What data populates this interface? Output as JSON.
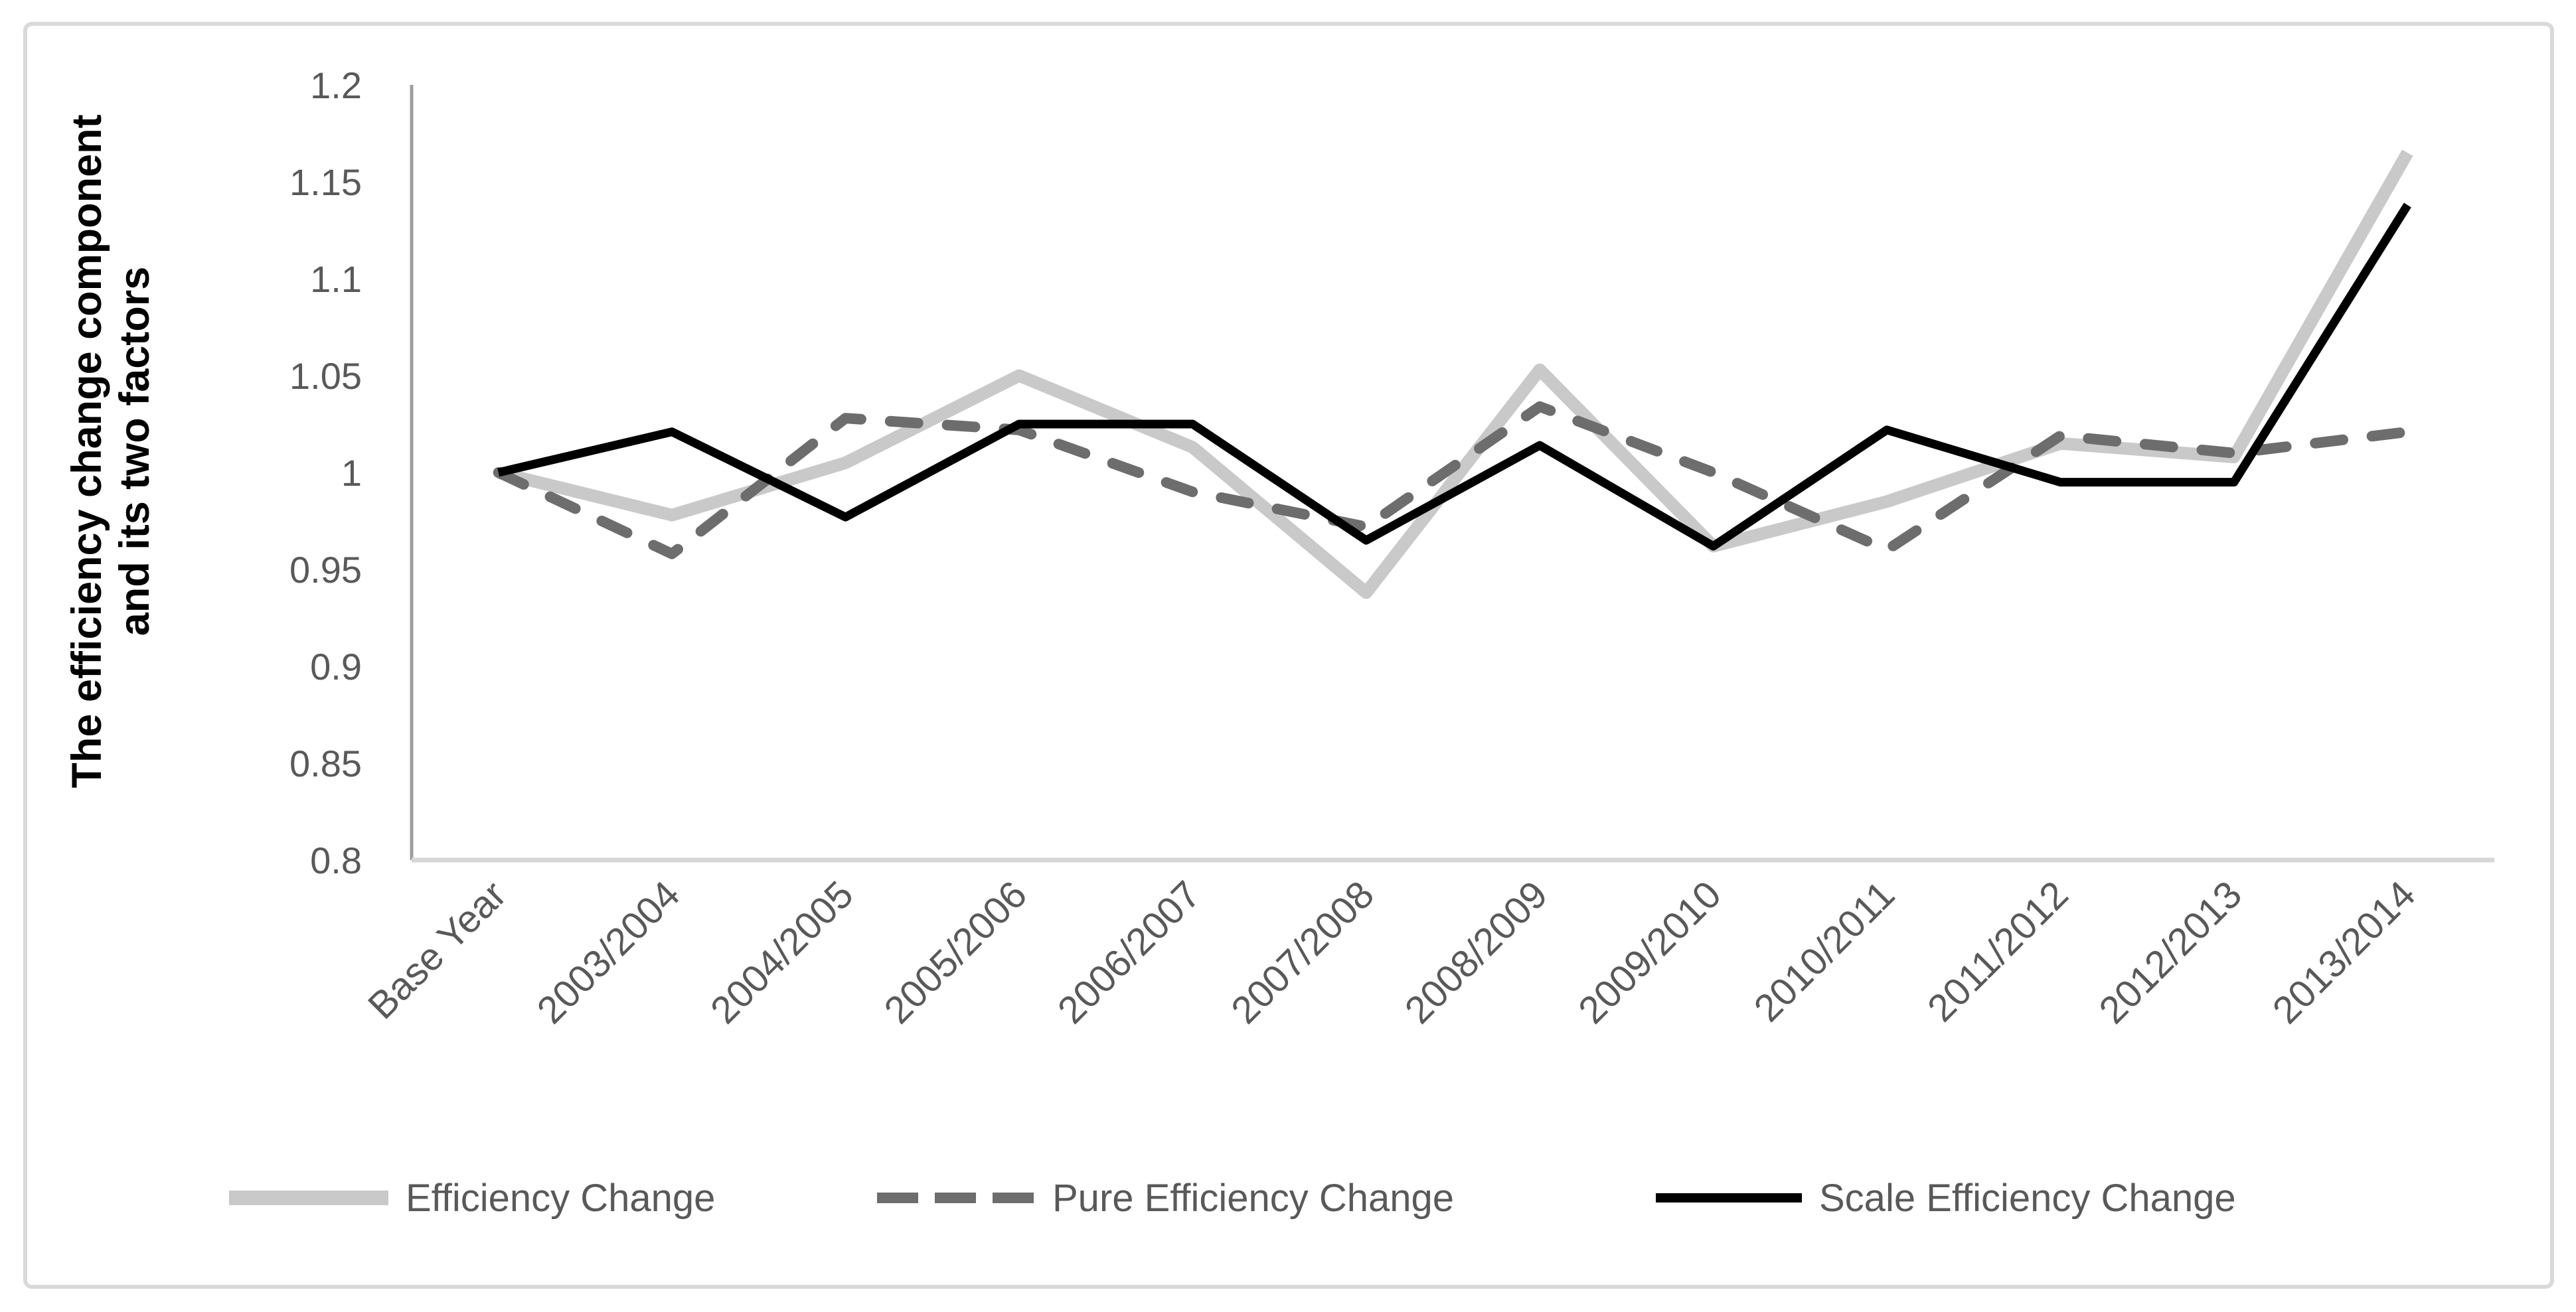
{
  "chart_data": {
    "type": "line",
    "title": "",
    "ylabel_line1": "The efficiency change component",
    "ylabel_line2": "and its two factors",
    "xlabel": "",
    "ylim": [
      0.8,
      1.2
    ],
    "grid": "off",
    "legend_position": "bottom",
    "axis_line_color": "#9e9e9e",
    "baseline_color": "#d6d6d6",
    "border_color": "#d9d9d9",
    "text_color": "#595959",
    "yticks": [
      {
        "label": "1.2",
        "value": 1.2
      },
      {
        "label": "1.15",
        "value": 1.15
      },
      {
        "label": "1.1",
        "value": 1.1
      },
      {
        "label": "1.05",
        "value": 1.05
      },
      {
        "label": "1",
        "value": 1.0
      },
      {
        "label": "0.95",
        "value": 0.95
      },
      {
        "label": "0.9",
        "value": 0.9
      },
      {
        "label": "0.85",
        "value": 0.85
      },
      {
        "label": "0.8",
        "value": 0.8
      }
    ],
    "categories": [
      "Base Year",
      "2003/2004",
      "2004/2005",
      "2005/2006",
      "2006/2007",
      "2007/2008",
      "2008/2009",
      "2009/2010",
      "2010/2011",
      "2011/2012",
      "2012/2013",
      "2013/2014"
    ],
    "series": [
      {
        "name": "Efficiency Change",
        "color": "#c9c9c9",
        "dash": false,
        "values": [
          1.0,
          0.978,
          1.005,
          1.05,
          1.013,
          0.938,
          1.053,
          0.962,
          0.985,
          1.015,
          1.008,
          1.165
        ]
      },
      {
        "name": "Pure Efficiency Change",
        "color": "#6d6d6d",
        "dash": true,
        "values": [
          1.0,
          0.958,
          1.028,
          1.022,
          0.99,
          0.972,
          1.034,
          1.0,
          0.96,
          1.019,
          1.01,
          1.021
        ]
      },
      {
        "name": "Scale Efficiency Change",
        "color": "#000000",
        "dash": false,
        "values": [
          1.0,
          1.021,
          0.977,
          1.025,
          1.025,
          0.965,
          1.014,
          0.962,
          1.022,
          0.995,
          0.995,
          1.138
        ]
      }
    ]
  }
}
